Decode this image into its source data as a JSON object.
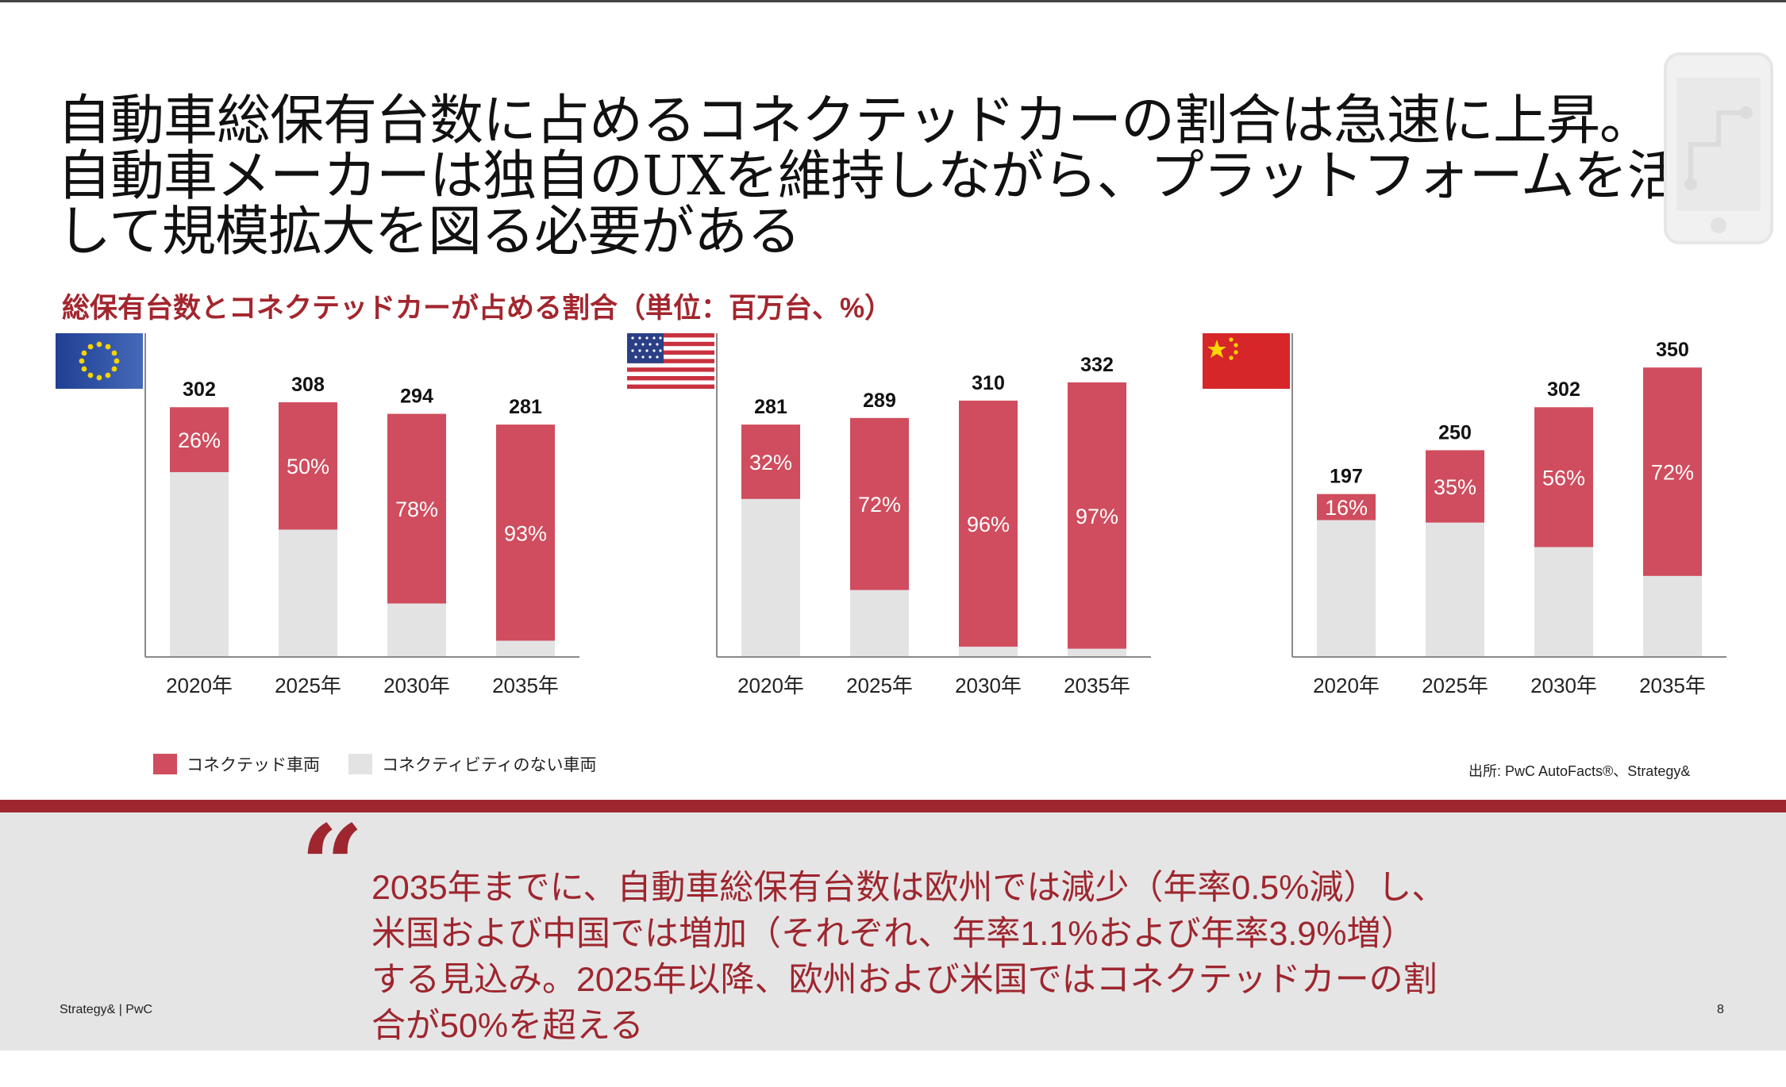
{
  "title": {
    "lines": [
      "自動車総保有台数に占めるコネクテッドカーの割合は急速に上昇。",
      "自動車メーカーは独自のUXを維持しながら、プラットフォームを活用",
      "して規模拡大を図る必要がある"
    ]
  },
  "subtitle": "総保有台数とコネクテッドカーが占める割合（単位：百万台、%）",
  "colors": {
    "connected": "#cf4d5e",
    "non_connected": "#e3e3e4",
    "accent": "#9e262e",
    "axis": "#8a8a8a"
  },
  "chart_data": [
    {
      "type": "bar",
      "region_icon": "eu-flag-icon",
      "categories": [
        "2020年",
        "2025年",
        "2030年",
        "2035年"
      ],
      "totals": [
        302,
        308,
        294,
        281
      ],
      "series": [
        {
          "name": "コネクテッド車両",
          "percent": [
            26,
            50,
            78,
            93
          ],
          "labels": [
            "26%",
            "50%",
            "78%",
            "93%"
          ]
        },
        {
          "name": "コネクティビティのない車両"
        }
      ],
      "ylim": [
        0,
        355
      ],
      "stacked": true
    },
    {
      "type": "bar",
      "region_icon": "us-flag-icon",
      "categories": [
        "2020年",
        "2025年",
        "2030年",
        "2035年"
      ],
      "totals": [
        281,
        289,
        310,
        332
      ],
      "series": [
        {
          "name": "コネクテッド車両",
          "percent": [
            32,
            72,
            96,
            97
          ],
          "labels": [
            "32%",
            "72%",
            "96%",
            "97%"
          ]
        },
        {
          "name": "コネクティビティのない車両"
        }
      ],
      "ylim": [
        0,
        355
      ],
      "stacked": true
    },
    {
      "type": "bar",
      "region_icon": "china-flag-icon",
      "categories": [
        "2020年",
        "2025年",
        "2030年",
        "2035年"
      ],
      "totals": [
        197,
        250,
        302,
        350
      ],
      "series": [
        {
          "name": "コネクテッド車両",
          "percent": [
            16,
            35,
            56,
            72
          ],
          "labels": [
            "16%",
            "35%",
            "56%",
            "72%"
          ]
        },
        {
          "name": "コネクティビティのない車両"
        }
      ],
      "ylim": [
        0,
        355
      ],
      "stacked": true
    }
  ],
  "legend": {
    "connected": "コネクテッド車両",
    "non_connected": "コネクティビティのない車両"
  },
  "source": "出所: PwC AutoFacts®、Strategy&",
  "quote": {
    "mark": "“",
    "lines": [
      "2035年までに、自動車総保有台数は欧州では減少（年率0.5%減）し、",
      "米国および中国では増加（それぞれ、年率1.1%および年率3.9%増）",
      "する見込み。2025年以降、欧州および米国ではコネクテッドカーの割",
      "合が50%を超える"
    ]
  },
  "footer": {
    "brand": "Strategy& | PwC",
    "page": "8"
  }
}
